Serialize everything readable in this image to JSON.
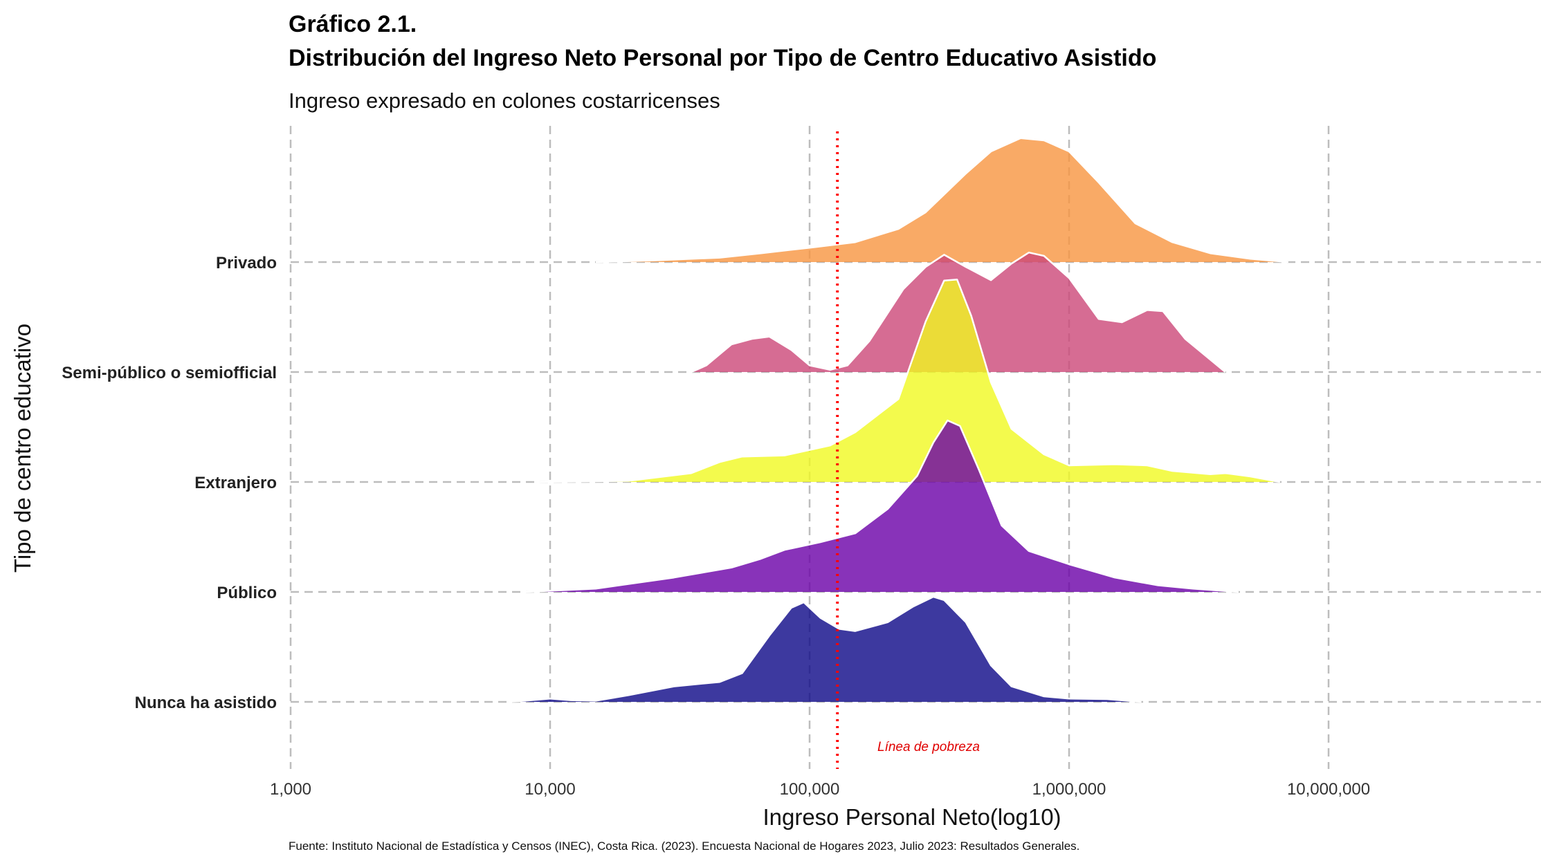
{
  "chart_data": {
    "type": "ridgeline",
    "title": "Gráfico 2.1.",
    "subtitle_line": "Distribución del Ingreso Neto Personal por Tipo de Centro Educativo Asistido",
    "subtitle": "Ingreso expresado en colones costarricenses",
    "xlabel": "Ingreso Personal Neto(log10)",
    "ylabel": "Tipo de centro educativo",
    "x_scale": "log10",
    "xlim": [
      1000,
      60000000
    ],
    "x_ticks": [
      {
        "value": 1000,
        "label": "1,000"
      },
      {
        "value": 10000,
        "label": "10,000"
      },
      {
        "value": 100000,
        "label": "100,000"
      },
      {
        "value": 1000000,
        "label": "1,000,000"
      },
      {
        "value": 10000000,
        "label": "10,000,000"
      }
    ],
    "grid": true,
    "caption": "Fuente: Instituto Nacional de Estadística y Censos (INEC), Costa Rica. (2023). Encuesta Nacional de Hogares 2023, Julio 2023: Resultados Generales.",
    "poverty_line": {
      "value": 128000,
      "label": "Línea de pobreza",
      "color": "#ff0000"
    },
    "series": [
      {
        "name": "Nunca ha asistido",
        "color": "#0d0887",
        "points": [
          [
            6800,
            0
          ],
          [
            8000,
            0.01
          ],
          [
            10000,
            0.03
          ],
          [
            12000,
            0.015
          ],
          [
            15000,
            0.01
          ],
          [
            20000,
            0.06
          ],
          [
            30000,
            0.14
          ],
          [
            45000,
            0.18
          ],
          [
            55000,
            0.26
          ],
          [
            70000,
            0.6
          ],
          [
            85000,
            0.85
          ],
          [
            95000,
            0.9
          ],
          [
            110000,
            0.76
          ],
          [
            130000,
            0.66
          ],
          [
            150000,
            0.64
          ],
          [
            200000,
            0.72
          ],
          [
            250000,
            0.86
          ],
          [
            300000,
            0.95
          ],
          [
            330000,
            0.92
          ],
          [
            400000,
            0.72
          ],
          [
            500000,
            0.33
          ],
          [
            600000,
            0.14
          ],
          [
            800000,
            0.05
          ],
          [
            1000000,
            0.03
          ],
          [
            1400000,
            0.025
          ],
          [
            1900000,
            0
          ]
        ]
      },
      {
        "name": "Público",
        "color": "#6a00a8",
        "points": [
          [
            8000,
            0
          ],
          [
            15000,
            0.03
          ],
          [
            30000,
            0.13
          ],
          [
            50000,
            0.22
          ],
          [
            65000,
            0.3
          ],
          [
            80000,
            0.38
          ],
          [
            110000,
            0.45
          ],
          [
            150000,
            0.53
          ],
          [
            200000,
            0.75
          ],
          [
            260000,
            1.05
          ],
          [
            300000,
            1.35
          ],
          [
            340000,
            1.55
          ],
          [
            380000,
            1.5
          ],
          [
            450000,
            1.1
          ],
          [
            550000,
            0.6
          ],
          [
            700000,
            0.37
          ],
          [
            1000000,
            0.25
          ],
          [
            1500000,
            0.13
          ],
          [
            2200000,
            0.06
          ],
          [
            3000000,
            0.03
          ],
          [
            4500000,
            0
          ]
        ]
      },
      {
        "name": "Extranjero",
        "color": "#f0f921",
        "points": [
          [
            9000,
            0
          ],
          [
            20000,
            0.01
          ],
          [
            35000,
            0.08
          ],
          [
            45000,
            0.18
          ],
          [
            55000,
            0.23
          ],
          [
            80000,
            0.24
          ],
          [
            120000,
            0.33
          ],
          [
            150000,
            0.45
          ],
          [
            220000,
            0.75
          ],
          [
            280000,
            1.45
          ],
          [
            330000,
            1.82
          ],
          [
            370000,
            1.83
          ],
          [
            420000,
            1.5
          ],
          [
            500000,
            0.9
          ],
          [
            600000,
            0.48
          ],
          [
            800000,
            0.25
          ],
          [
            1000000,
            0.15
          ],
          [
            1500000,
            0.16
          ],
          [
            2000000,
            0.15
          ],
          [
            2500000,
            0.1
          ],
          [
            3500000,
            0.07
          ],
          [
            4000000,
            0.08
          ],
          [
            5000000,
            0.05
          ],
          [
            6500000,
            0
          ]
        ]
      },
      {
        "name": "Semi-público o semiofficial",
        "label": "Semi-público o semiofficial",
        "color": "#cc4778",
        "points": [
          [
            35000,
            0
          ],
          [
            40000,
            0.06
          ],
          [
            50000,
            0.25
          ],
          [
            60000,
            0.3
          ],
          [
            70000,
            0.32
          ],
          [
            85000,
            0.2
          ],
          [
            100000,
            0.06
          ],
          [
            120000,
            0.02
          ],
          [
            140000,
            0.06
          ],
          [
            170000,
            0.28
          ],
          [
            230000,
            0.75
          ],
          [
            280000,
            0.95
          ],
          [
            330000,
            1.06
          ],
          [
            400000,
            0.95
          ],
          [
            500000,
            0.83
          ],
          [
            600000,
            0.98
          ],
          [
            700000,
            1.08
          ],
          [
            800000,
            1.05
          ],
          [
            1000000,
            0.85
          ],
          [
            1300000,
            0.48
          ],
          [
            1600000,
            0.45
          ],
          [
            2000000,
            0.56
          ],
          [
            2300000,
            0.55
          ],
          [
            2800000,
            0.3
          ],
          [
            4000000,
            0
          ]
        ]
      },
      {
        "name": "Privado",
        "color": "#f89540",
        "points": [
          [
            15000,
            0
          ],
          [
            25000,
            0.015
          ],
          [
            45000,
            0.04
          ],
          [
            65000,
            0.08
          ],
          [
            100000,
            0.13
          ],
          [
            150000,
            0.18
          ],
          [
            220000,
            0.3
          ],
          [
            280000,
            0.45
          ],
          [
            400000,
            0.8
          ],
          [
            500000,
            1.0
          ],
          [
            650000,
            1.12
          ],
          [
            800000,
            1.1
          ],
          [
            1000000,
            1.0
          ],
          [
            1300000,
            0.72
          ],
          [
            1800000,
            0.35
          ],
          [
            2500000,
            0.18
          ],
          [
            3500000,
            0.08
          ],
          [
            5000000,
            0.03
          ],
          [
            7000000,
            0
          ]
        ]
      }
    ]
  }
}
